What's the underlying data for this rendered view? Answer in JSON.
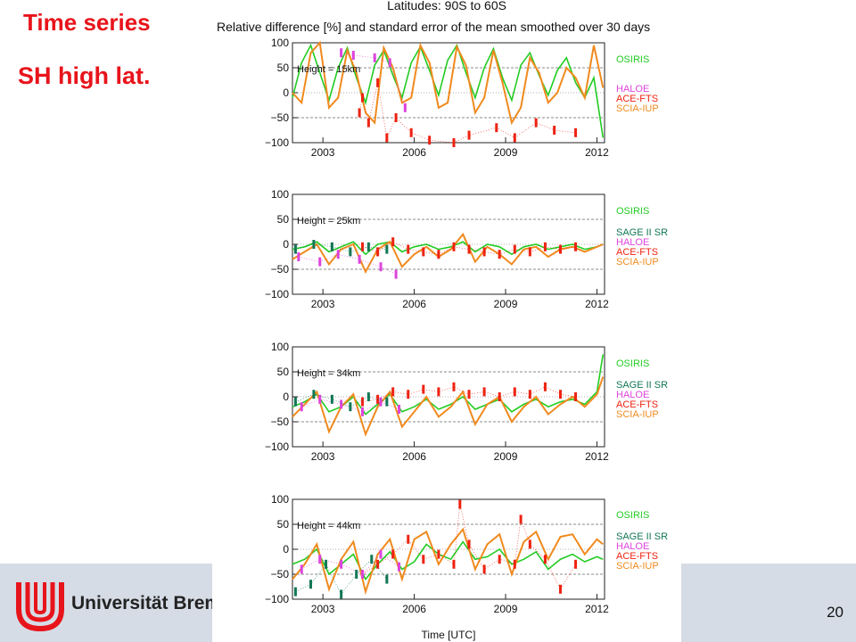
{
  "slide": {
    "title": "Time series",
    "subtitle": "SH high lat.",
    "university": "Universität Bremen",
    "page_number": "20"
  },
  "chart_data": {
    "type": "line",
    "title": "Latitudes: 90S to 60S",
    "subtitle": "Relative difference [%] and standard error of the mean smoothed over 30 days",
    "xlabel": "Time [UTC]",
    "x_ticks": [
      "2003",
      "2006",
      "2009",
      "2012"
    ],
    "xlim": [
      2002.0,
      2012.25
    ],
    "ylim": [
      -100,
      100
    ],
    "y_ticks": [
      100,
      50,
      0,
      -50,
      -100
    ],
    "grid": "dashed horizontal at ±50",
    "colors": {
      "OSIRIS": "#22cc22",
      "SAGE II SR": "#117755",
      "HALOE": "#dd44dd",
      "ACE-FTS": "#ee2211",
      "SCIA-IUP": "#f08a1e"
    },
    "panels": [
      {
        "height_label": "Height = 15km",
        "legend": [
          "OSIRIS",
          "HALOE",
          "ACE-FTS",
          "SCIA-IUP"
        ],
        "series": [
          {
            "name": "OSIRIS",
            "x": [
              2002.0,
              2002.3,
              2002.6,
              2002.9,
              2003.2,
              2003.5,
              2003.8,
              2004.1,
              2004.4,
              2004.7,
              2005.0,
              2005.3,
              2005.6,
              2005.9,
              2006.2,
              2006.5,
              2006.8,
              2007.1,
              2007.4,
              2007.7,
              2008.0,
              2008.3,
              2008.6,
              2008.9,
              2009.2,
              2009.5,
              2009.8,
              2010.1,
              2010.4,
              2010.7,
              2011.0,
              2011.3,
              2011.6,
              2011.9,
              2012.2
            ],
            "y": [
              -10,
              60,
              95,
              40,
              -15,
              50,
              90,
              30,
              -20,
              55,
              85,
              35,
              -10,
              60,
              92,
              45,
              -5,
              65,
              95,
              40,
              -10,
              50,
              88,
              30,
              -15,
              55,
              80,
              35,
              -5,
              45,
              70,
              20,
              -10,
              30,
              -90
            ]
          },
          {
            "name": "SCIA-IUP",
            "x": [
              2002.0,
              2002.3,
              2002.6,
              2002.9,
              2003.2,
              2003.5,
              2003.8,
              2004.1,
              2004.4,
              2004.7,
              2005.0,
              2005.3,
              2005.6,
              2005.9,
              2006.2,
              2006.5,
              2006.8,
              2007.1,
              2007.4,
              2007.7,
              2008.0,
              2008.3,
              2008.6,
              2008.9,
              2009.2,
              2009.5,
              2009.8,
              2010.1,
              2010.4,
              2010.7,
              2011.0,
              2011.3,
              2011.6,
              2011.9,
              2012.2
            ],
            "y": [
              0,
              -20,
              80,
              100,
              -30,
              -10,
              85,
              40,
              -40,
              -60,
              90,
              50,
              -20,
              -10,
              95,
              60,
              -30,
              -20,
              92,
              55,
              -40,
              -10,
              85,
              20,
              -60,
              -30,
              70,
              40,
              -20,
              0,
              50,
              30,
              -10,
              95,
              10
            ]
          },
          {
            "name": "ACE-FTS",
            "x": [
              2004.2,
              2004.3,
              2004.5,
              2004.8,
              2005.1,
              2005.4,
              2005.9,
              2006.5,
              2007.3,
              2007.8,
              2008.7,
              2009.3,
              2010.0,
              2010.6,
              2011.3
            ],
            "y": [
              -40,
              -10,
              -60,
              20,
              -90,
              -50,
              -80,
              -95,
              -100,
              -85,
              -70,
              -90,
              -60,
              -75,
              -80
            ]
          },
          {
            "name": "HALOE",
            "x": [
              2003.6,
              2004.0,
              2004.7,
              2005.2,
              2005.7
            ],
            "y": [
              80,
              75,
              70,
              60,
              -30
            ]
          }
        ]
      },
      {
        "height_label": "Height = 25km",
        "legend": [
          "OSIRIS",
          "SAGE II SR",
          "HALOE",
          "ACE-FTS",
          "SCIA-IUP"
        ],
        "series": [
          {
            "name": "OSIRIS",
            "x": [
              2002.0,
              2002.4,
              2002.8,
              2003.2,
              2003.6,
              2004.0,
              2004.4,
              2004.8,
              2005.2,
              2005.6,
              2006.0,
              2006.4,
              2006.8,
              2007.2,
              2007.6,
              2008.0,
              2008.4,
              2008.8,
              2009.2,
              2009.6,
              2010.0,
              2010.4,
              2010.8,
              2011.2,
              2011.6,
              2012.0,
              2012.2
            ],
            "y": [
              -10,
              -5,
              5,
              -15,
              -5,
              5,
              -20,
              0,
              5,
              -15,
              -5,
              0,
              -10,
              -5,
              5,
              -15,
              0,
              -5,
              -20,
              -5,
              0,
              -10,
              -5,
              0,
              -10,
              -5,
              0
            ]
          },
          {
            "name": "SCIA-IUP",
            "x": [
              2002.0,
              2002.4,
              2002.8,
              2003.2,
              2003.6,
              2004.0,
              2004.4,
              2004.8,
              2005.2,
              2005.6,
              2006.0,
              2006.4,
              2006.8,
              2007.2,
              2007.6,
              2008.0,
              2008.4,
              2008.8,
              2009.2,
              2009.6,
              2010.0,
              2010.4,
              2010.8,
              2011.2,
              2011.6,
              2012.0,
              2012.2
            ],
            "y": [
              -30,
              -15,
              0,
              -40,
              -10,
              0,
              -55,
              -10,
              5,
              -45,
              -20,
              -5,
              -25,
              -10,
              20,
              -35,
              -5,
              -20,
              -40,
              -10,
              -5,
              -25,
              -10,
              -5,
              -15,
              -5,
              0
            ]
          },
          {
            "name": "ACE-FTS",
            "x": [
              2004.3,
              2004.8,
              2005.3,
              2005.8,
              2006.3,
              2006.8,
              2007.3,
              2007.8,
              2008.3,
              2008.8,
              2009.3,
              2009.8,
              2010.3,
              2010.8,
              2011.3
            ],
            "y": [
              -5,
              -15,
              5,
              -10,
              -15,
              -20,
              -5,
              -10,
              -15,
              -20,
              -10,
              -15,
              -5,
              -10,
              -5
            ]
          },
          {
            "name": "HALOE",
            "x": [
              2002.2,
              2002.9,
              2003.5,
              2004.2,
              2004.9,
              2005.4
            ],
            "y": [
              -25,
              -35,
              -20,
              -30,
              -45,
              -60
            ]
          },
          {
            "name": "SAGE II SR",
            "x": [
              2002.1,
              2002.7,
              2003.3,
              2003.9,
              2004.5,
              2005.1
            ],
            "y": [
              -10,
              0,
              -5,
              -15,
              -5,
              -10
            ]
          }
        ]
      },
      {
        "height_label": "Height = 34km",
        "legend": [
          "OSIRIS",
          "SAGE II SR",
          "HALOE",
          "ACE-FTS",
          "SCIA-IUP"
        ],
        "series": [
          {
            "name": "OSIRIS",
            "x": [
              2002.0,
              2002.4,
              2002.8,
              2003.2,
              2003.6,
              2004.0,
              2004.4,
              2004.8,
              2005.2,
              2005.6,
              2006.0,
              2006.4,
              2006.8,
              2007.2,
              2007.6,
              2008.0,
              2008.4,
              2008.8,
              2009.2,
              2009.6,
              2010.0,
              2010.4,
              2010.8,
              2011.2,
              2011.6,
              2012.0,
              2012.2
            ],
            "y": [
              -20,
              -10,
              5,
              -30,
              -20,
              0,
              -35,
              -15,
              5,
              -30,
              -20,
              -5,
              -25,
              -15,
              0,
              -25,
              -15,
              -5,
              -30,
              -15,
              -5,
              -20,
              -10,
              -5,
              -15,
              10,
              85
            ]
          },
          {
            "name": "SCIA-IUP",
            "x": [
              2002.0,
              2002.4,
              2002.8,
              2003.2,
              2003.6,
              2004.0,
              2004.4,
              2004.8,
              2005.2,
              2005.6,
              2006.0,
              2006.4,
              2006.8,
              2007.2,
              2007.6,
              2008.0,
              2008.4,
              2008.8,
              2009.2,
              2009.6,
              2010.0,
              2010.4,
              2010.8,
              2011.2,
              2011.6,
              2012.0,
              2012.2
            ],
            "y": [
              -40,
              -15,
              10,
              -70,
              -20,
              5,
              -75,
              -20,
              10,
              -60,
              -30,
              0,
              -40,
              -20,
              10,
              -55,
              -15,
              0,
              -50,
              -20,
              0,
              -35,
              -15,
              0,
              -20,
              5,
              40
            ]
          },
          {
            "name": "ACE-FTS",
            "x": [
              2004.3,
              2004.8,
              2005.3,
              2005.8,
              2006.3,
              2006.8,
              2007.3,
              2007.8,
              2008.3,
              2008.8,
              2009.3,
              2009.8,
              2010.3,
              2010.8,
              2011.3
            ],
            "y": [
              -10,
              -5,
              10,
              5,
              15,
              10,
              20,
              5,
              10,
              0,
              10,
              5,
              20,
              5,
              0
            ]
          },
          {
            "name": "HALOE",
            "x": [
              2002.3,
              2002.9,
              2003.6,
              2004.3,
              2004.9,
              2005.5
            ],
            "y": [
              -20,
              -5,
              -15,
              -30,
              -10,
              -25
            ]
          },
          {
            "name": "SAGE II SR",
            "x": [
              2002.1,
              2002.7,
              2003.3,
              2003.9,
              2004.5,
              2005.1
            ],
            "y": [
              -10,
              5,
              -5,
              -20,
              0,
              -10
            ]
          }
        ]
      },
      {
        "height_label": "Height = 44km",
        "legend": [
          "OSIRIS",
          "SAGE II SR",
          "HALOE",
          "ACE-FTS",
          "SCIA-IUP"
        ],
        "series": [
          {
            "name": "OSIRIS",
            "x": [
              2002.0,
              2002.4,
              2002.8,
              2003.2,
              2003.6,
              2004.0,
              2004.4,
              2004.8,
              2005.2,
              2005.6,
              2006.0,
              2006.4,
              2006.8,
              2007.2,
              2007.6,
              2008.0,
              2008.4,
              2008.8,
              2009.2,
              2009.6,
              2010.0,
              2010.4,
              2010.8,
              2011.2,
              2011.6,
              2012.0,
              2012.2
            ],
            "y": [
              -30,
              -20,
              0,
              -50,
              -30,
              -10,
              -60,
              -30,
              -5,
              -40,
              -25,
              10,
              -10,
              -20,
              15,
              -20,
              -15,
              0,
              -30,
              -20,
              -5,
              -40,
              -20,
              -10,
              -25,
              -15,
              -20
            ]
          },
          {
            "name": "SCIA-IUP",
            "x": [
              2002.0,
              2002.4,
              2002.8,
              2003.2,
              2003.6,
              2004.0,
              2004.4,
              2004.8,
              2005.2,
              2005.6,
              2006.0,
              2006.4,
              2006.8,
              2007.2,
              2007.6,
              2008.0,
              2008.4,
              2008.8,
              2009.2,
              2009.6,
              2010.0,
              2010.4,
              2010.8,
              2011.2,
              2011.6,
              2012.0,
              2012.2
            ],
            "y": [
              -60,
              -30,
              10,
              -80,
              -20,
              15,
              -85,
              -10,
              20,
              -60,
              20,
              35,
              -30,
              10,
              40,
              -40,
              10,
              30,
              -50,
              15,
              35,
              -20,
              25,
              30,
              -10,
              20,
              10
            ]
          },
          {
            "name": "ACE-FTS",
            "x": [
              2004.3,
              2004.8,
              2005.3,
              2005.8,
              2006.3,
              2006.8,
              2007.3,
              2007.5,
              2007.8,
              2008.3,
              2008.8,
              2009.3,
              2009.5,
              2009.8,
              2010.3,
              2010.8,
              2011.3
            ],
            "y": [
              -50,
              -30,
              -10,
              20,
              -20,
              -10,
              -30,
              90,
              10,
              -40,
              -20,
              -30,
              60,
              10,
              -20,
              -80,
              -30
            ]
          },
          {
            "name": "HALOE",
            "x": [
              2002.3,
              2002.9,
              2003.6,
              2004.3,
              2004.9,
              2005.5
            ],
            "y": [
              -40,
              -20,
              -30,
              -50,
              -10,
              -35
            ]
          },
          {
            "name": "SAGE II SR",
            "x": [
              2002.1,
              2002.6,
              2003.1,
              2003.6,
              2004.1,
              2004.6,
              2005.1
            ],
            "y": [
              -85,
              -70,
              -30,
              -90,
              -50,
              -20,
              -60
            ]
          }
        ]
      }
    ]
  }
}
